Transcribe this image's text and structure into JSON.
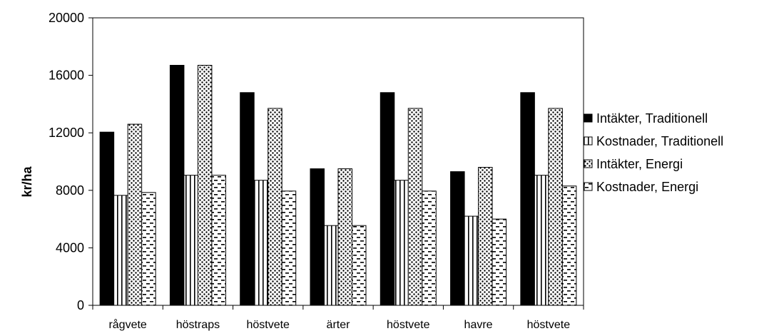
{
  "chart_data": {
    "type": "bar",
    "title": "",
    "xlabel": "",
    "ylabel": "kr/ha",
    "ylim": [
      0,
      20000
    ],
    "yticks": [
      0,
      4000,
      8000,
      12000,
      16000,
      20000
    ],
    "categories": [
      "rågvete",
      "höstraps",
      "höstvete",
      "ärter",
      "höstvete",
      "havre",
      "höstvete"
    ],
    "series": [
      {
        "name": "Intäkter, Traditionell",
        "pattern": "solid",
        "values": [
          12050,
          16700,
          14800,
          9500,
          14800,
          9300,
          14800
        ]
      },
      {
        "name": "Kostnader, Traditionell",
        "pattern": "vertical-lines",
        "values": [
          7650,
          9050,
          8700,
          5550,
          8700,
          6200,
          9050
        ]
      },
      {
        "name": "Intäkter, Energi",
        "pattern": "dots",
        "values": [
          12600,
          16700,
          13700,
          9500,
          13700,
          9600,
          13700
        ]
      },
      {
        "name": "Kostnader, Energi",
        "pattern": "horizontal-dashes",
        "values": [
          7850,
          9050,
          7950,
          5550,
          7950,
          6000,
          8300
        ]
      }
    ],
    "grid": false,
    "legend_position": "right",
    "colors": {
      "bar": "#000000",
      "fill": "#ffffff",
      "axis": "#000000",
      "frame": "#000000"
    }
  }
}
